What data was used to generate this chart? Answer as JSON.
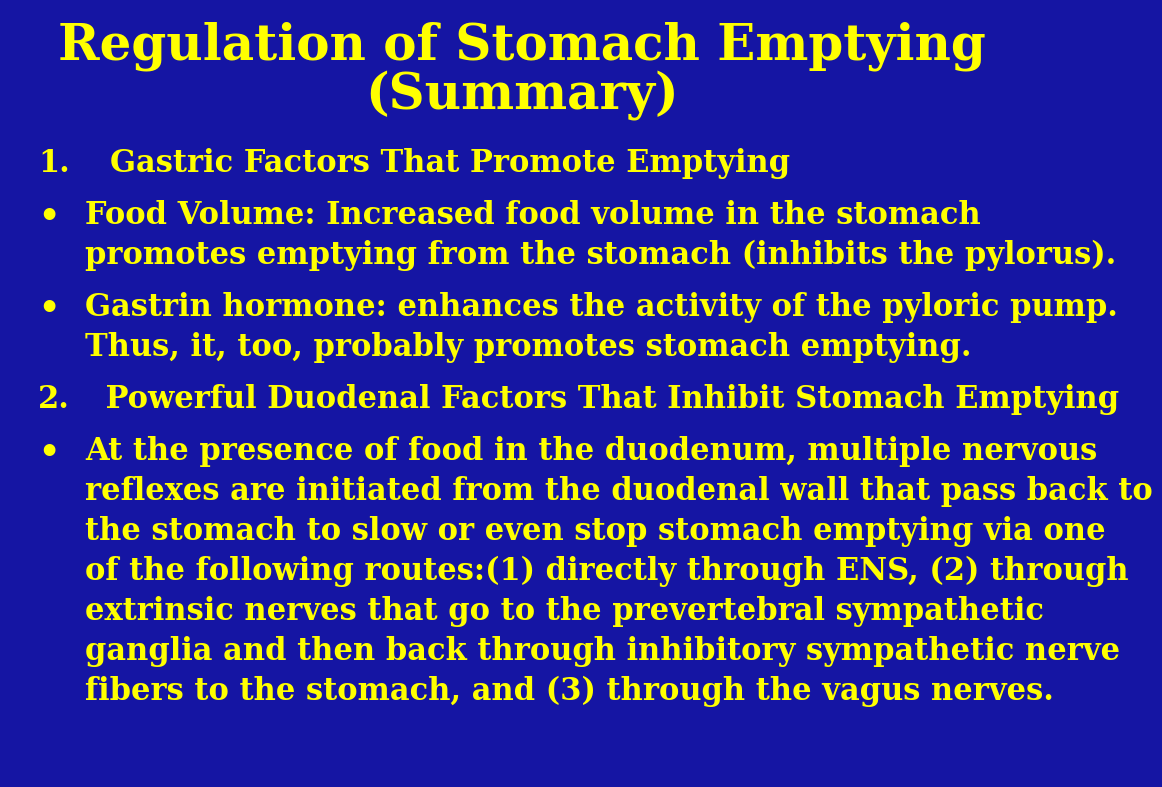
{
  "background_color": "#1515a3",
  "text_color": "#ffff00",
  "title_line1": "Regulation of Stomach Emptying",
  "title_line2": "(Summary)",
  "title_fontsize": 36,
  "body_fontsize": 22,
  "font": "DejaVu Serif",
  "bullet3_lines": [
    "At the presence of food in the duodenum, multiple nervous",
    "reflexes are initiated from the duodenal wall that pass back to",
    "the stomach to slow or even stop stomach emptying via one",
    "of the following routes:(1) directly through ENS, (2) through",
    "extrinsic nerves that go to the prevertebral sympathetic",
    "ganglia and then back through inhibitory sympathetic nerve",
    "fibers to the stomach, and (3) through the vagus nerves."
  ]
}
